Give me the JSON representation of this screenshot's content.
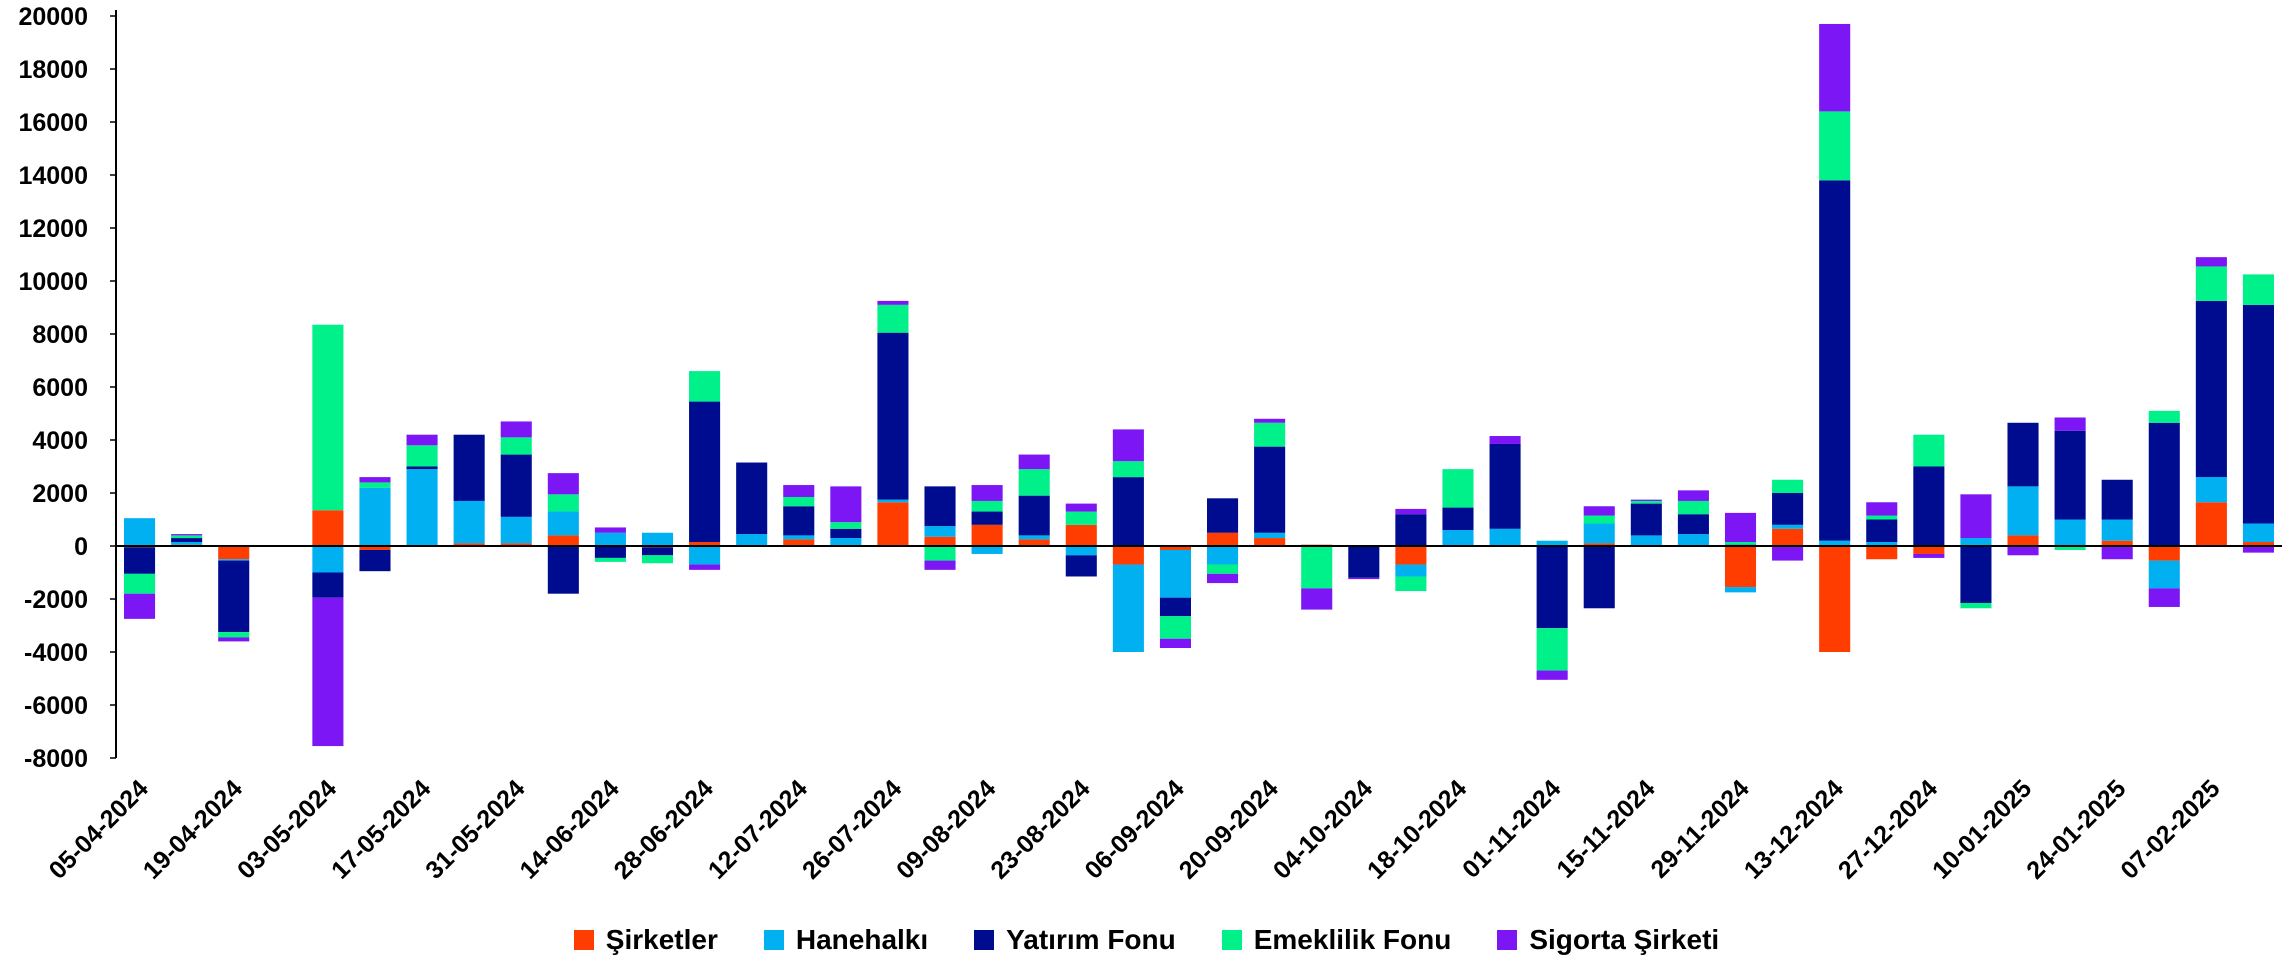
{
  "chart_data": {
    "type": "bar",
    "stacked": true,
    "title": "",
    "xlabel": "",
    "ylabel": "",
    "ylim": [
      -8000,
      20000
    ],
    "yticks": [
      -8000,
      -6000,
      -4000,
      -2000,
      0,
      2000,
      4000,
      6000,
      8000,
      10000,
      12000,
      14000,
      16000,
      18000,
      20000
    ],
    "grid": false,
    "legend_position": "bottom",
    "categories": [
      "05-04-2024",
      "12-04-2024",
      "19-04-2024",
      "26-04-2024",
      "03-05-2024",
      "10-05-2024",
      "17-05-2024",
      "24-05-2024",
      "31-05-2024",
      "07-06-2024",
      "14-06-2024",
      "21-06-2024",
      "28-06-2024",
      "05-07-2024",
      "12-07-2024",
      "19-07-2024",
      "26-07-2024",
      "02-08-2024",
      "09-08-2024",
      "16-08-2024",
      "23-08-2024",
      "30-08-2024",
      "06-09-2024",
      "13-09-2024",
      "20-09-2024",
      "27-09-2024",
      "04-10-2024",
      "11-10-2024",
      "18-10-2024",
      "25-10-2024",
      "01-11-2024",
      "08-11-2024",
      "15-11-2024",
      "22-11-2024",
      "29-11-2024",
      "06-12-2024",
      "13-12-2024",
      "20-12-2024",
      "27-12-2024",
      "03-01-2025",
      "10-01-2025",
      "17-01-2025",
      "24-01-2025",
      "31-01-2025",
      "07-02-2025",
      "14-02-2025"
    ],
    "labeled_categories": [
      "05-04-2024",
      "19-04-2024",
      "03-05-2024",
      "17-05-2024",
      "31-05-2024",
      "14-06-2024",
      "28-06-2024",
      "12-07-2024",
      "26-07-2024",
      "09-08-2024",
      "23-08-2024",
      "06-09-2024",
      "20-09-2024",
      "04-10-2024",
      "18-10-2024",
      "01-11-2024",
      "15-11-2024",
      "29-11-2024",
      "13-12-2024",
      "27-12-2024",
      "10-01-2025",
      "24-01-2025",
      "07-02-2025"
    ],
    "series": [
      {
        "name": "Şirketler",
        "color": "#FF3D00",
        "values": [
          -50,
          50,
          -500,
          0,
          1350,
          -150,
          0,
          100,
          100,
          400,
          0,
          -50,
          150,
          0,
          250,
          0,
          1650,
          350,
          800,
          250,
          800,
          -700,
          -150,
          500,
          300,
          50,
          0,
          -700,
          0,
          0,
          0,
          100,
          0,
          0,
          -1550,
          650,
          -4000,
          -500,
          -300,
          0,
          400,
          0,
          200,
          -550,
          1650,
          150
        ]
      },
      {
        "name": "Hanehalkı",
        "color": "#00B0F0",
        "values": [
          1050,
          100,
          -50,
          0,
          -1000,
          2200,
          2900,
          1600,
          1000,
          900,
          500,
          500,
          -700,
          450,
          150,
          300,
          100,
          400,
          -300,
          150,
          -350,
          -3300,
          -1800,
          -700,
          200,
          0,
          0,
          -450,
          600,
          650,
          200,
          750,
          400,
          450,
          -200,
          150,
          200,
          150,
          0,
          300,
          1850,
          1000,
          800,
          -1050,
          950,
          700
        ]
      },
      {
        "name": "Yatırım Fonu",
        "color": "#000C8F",
        "values": [
          -1000,
          150,
          -2700,
          0,
          -950,
          -800,
          100,
          2500,
          2350,
          -1800,
          -450,
          -300,
          5300,
          2700,
          1100,
          350,
          6300,
          1500,
          500,
          1500,
          -800,
          2600,
          -700,
          1300,
          3250,
          0,
          -1200,
          1200,
          850,
          3200,
          -3100,
          -2350,
          1200,
          750,
          50,
          1200,
          13600,
          850,
          3000,
          -2150,
          2400,
          3350,
          1500,
          4650,
          6650,
          8250
        ]
      },
      {
        "name": "Emeklilik Fonu",
        "color": "#00F08A",
        "values": [
          -750,
          100,
          -200,
          0,
          7000,
          200,
          800,
          0,
          650,
          650,
          -150,
          -300,
          1150,
          0,
          350,
          250,
          1050,
          -550,
          400,
          1000,
          500,
          600,
          -850,
          -350,
          900,
          -1600,
          0,
          -550,
          1450,
          0,
          -1600,
          300,
          100,
          500,
          100,
          500,
          2600,
          150,
          1200,
          -200,
          0,
          -150,
          0,
          450,
          1300,
          1150
        ]
      },
      {
        "name": "Sigorta Şirketi",
        "color": "#7C16F5",
        "values": [
          -950,
          50,
          -150,
          0,
          -5600,
          200,
          400,
          0,
          600,
          800,
          200,
          0,
          -200,
          0,
          450,
          1350,
          150,
          -350,
          600,
          550,
          300,
          1200,
          -350,
          -350,
          150,
          -800,
          -50,
          200,
          0,
          300,
          -350,
          350,
          50,
          400,
          1100,
          -550,
          3300,
          500,
          -150,
          1650,
          -350,
          500,
          -500,
          -700,
          350,
          -250
        ]
      }
    ]
  }
}
